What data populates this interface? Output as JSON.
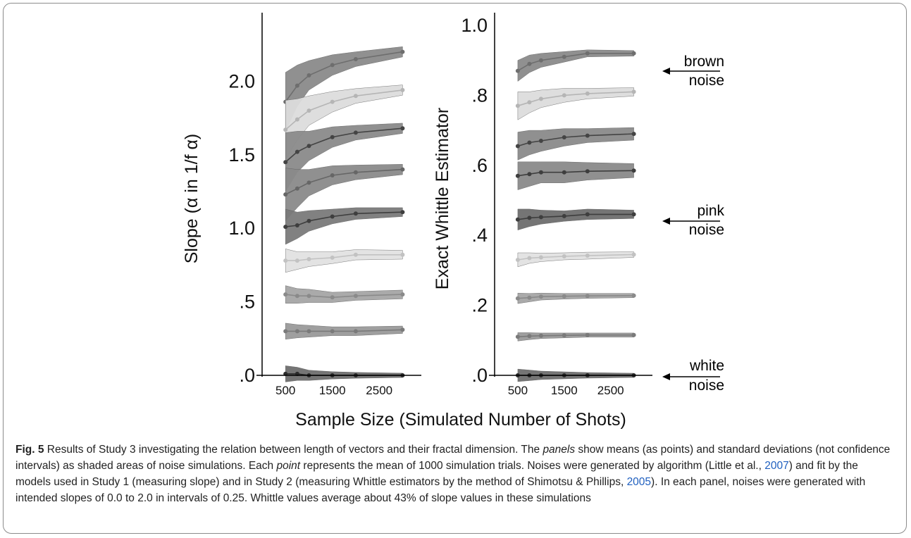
{
  "figure": {
    "xlabel": "Sample Size (Simulated Number of Shots)",
    "brown_label": [
      "brown",
      "noise"
    ],
    "pink_label": [
      "pink",
      "noise"
    ],
    "white_label": [
      "white",
      "noise"
    ]
  },
  "caption": {
    "label": "Fig. 5",
    "t1": " Results of Study 3 investigating the relation between length of vectors and their fractal dimension. The ",
    "t1_em": "panels",
    "t2": " show means (as points) and standard deviations (not confidence intervals) as shaded areas of noise simulations. Each ",
    "t2_em": "point",
    "t3": " represents the mean of 1000 simulation trials. Noises were generated by algorithm (Little et al., ",
    "ref1": "2007",
    "t4": ") and fit by the models used in Study 1 (measuring slope) and in Study 2 (measuring Whittle estimators by the method of Shimotsu & Phillips, ",
    "ref2": "2005",
    "t5": "). In each panel, noises were generated with intended slopes of 0.0 to 2.0 in intervals of 0.25. Whittle values average about 43% of slope values in these simulations"
  },
  "chart_data": [
    {
      "type": "line",
      "ylabel": "Slope (α in 1/f α)",
      "xticks": [
        "500",
        "1500",
        "2500"
      ],
      "yticks": [
        ".0",
        ".5",
        "1.0",
        "1.5",
        "2.0"
      ],
      "xlim": [
        0,
        3400
      ],
      "ylim": [
        -0.08,
        2.38
      ],
      "x": [
        500,
        750,
        1000,
        1500,
        2000,
        3000
      ],
      "series": [
        {
          "intended": 2.0,
          "color": "#8a8a8a",
          "line": "#6e6e6e",
          "means": [
            1.86,
            1.97,
            2.04,
            2.11,
            2.15,
            2.2
          ],
          "sd": [
            0.2,
            0.14,
            0.1,
            0.07,
            0.05,
            0.035
          ]
        },
        {
          "intended": 1.75,
          "color": "#dcdcdc",
          "line": "#b5b5b5",
          "means": [
            1.67,
            1.74,
            1.8,
            1.86,
            1.9,
            1.94
          ],
          "sd": [
            0.2,
            0.14,
            0.1,
            0.07,
            0.05,
            0.035
          ]
        },
        {
          "intended": 1.5,
          "color": "#8a8a8a",
          "line": "#444444",
          "means": [
            1.45,
            1.52,
            1.56,
            1.62,
            1.65,
            1.68
          ],
          "sd": [
            0.2,
            0.14,
            0.1,
            0.07,
            0.05,
            0.035
          ]
        },
        {
          "intended": 1.25,
          "color": "#8a8a8a",
          "line": "#666666",
          "means": [
            1.23,
            1.27,
            1.31,
            1.36,
            1.38,
            1.4
          ],
          "sd": [
            0.18,
            0.13,
            0.09,
            0.065,
            0.05,
            0.035
          ]
        },
        {
          "intended": 1.0,
          "color": "#7a7a7a",
          "line": "#3e3e3e",
          "means": [
            1.01,
            1.02,
            1.05,
            1.08,
            1.1,
            1.11
          ],
          "sd": [
            0.12,
            0.09,
            0.07,
            0.05,
            0.04,
            0.03
          ]
        },
        {
          "intended": 0.75,
          "color": "#e2e2e2",
          "line": "#c2c2c2",
          "means": [
            0.78,
            0.78,
            0.79,
            0.8,
            0.82,
            0.82
          ],
          "sd": [
            0.08,
            0.06,
            0.05,
            0.04,
            0.035,
            0.03
          ]
        },
        {
          "intended": 0.5,
          "color": "#a5a5a5",
          "line": "#8a8a8a",
          "means": [
            0.55,
            0.54,
            0.54,
            0.53,
            0.54,
            0.55
          ],
          "sd": [
            0.06,
            0.05,
            0.045,
            0.035,
            0.03,
            0.03
          ]
        },
        {
          "intended": 0.25,
          "color": "#9a9a9a",
          "line": "#7a7a7a",
          "means": [
            0.3,
            0.3,
            0.3,
            0.3,
            0.3,
            0.31
          ],
          "sd": [
            0.055,
            0.045,
            0.04,
            0.03,
            0.03,
            0.025
          ]
        },
        {
          "intended": 0.0,
          "color": "#6e6e6e",
          "line": "#2a2a2a",
          "means": [
            0.01,
            0.01,
            0.0,
            0.0,
            0.0,
            0.0
          ],
          "sd": [
            0.055,
            0.045,
            0.035,
            0.025,
            0.02,
            0.015
          ]
        }
      ]
    },
    {
      "type": "line",
      "ylabel": "Exact Whittle Estimator",
      "xticks": [
        "500",
        "1500",
        "2500"
      ],
      "yticks": [
        ".0",
        ".2",
        ".4",
        ".6",
        ".8",
        "1.0"
      ],
      "xlim": [
        0,
        3400
      ],
      "ylim": [
        -0.03,
        1.0
      ],
      "x": [
        500,
        750,
        1000,
        1500,
        2000,
        3000
      ],
      "series": [
        {
          "intended": 2.0,
          "color": "#8a8a8a",
          "line": "#6e6e6e",
          "means": [
            0.87,
            0.89,
            0.9,
            0.91,
            0.92,
            0.92
          ],
          "sd": [
            0.03,
            0.025,
            0.02,
            0.015,
            0.01,
            0.008
          ]
        },
        {
          "intended": 1.75,
          "color": "#dcdcdc",
          "line": "#b5b5b5",
          "means": [
            0.77,
            0.78,
            0.79,
            0.8,
            0.805,
            0.81
          ],
          "sd": [
            0.04,
            0.03,
            0.025,
            0.02,
            0.015,
            0.012
          ]
        },
        {
          "intended": 1.5,
          "color": "#8a8a8a",
          "line": "#444444",
          "means": [
            0.655,
            0.665,
            0.67,
            0.68,
            0.685,
            0.69
          ],
          "sd": [
            0.04,
            0.035,
            0.03,
            0.025,
            0.02,
            0.018
          ]
        },
        {
          "intended": 1.25,
          "color": "#8a8a8a",
          "line": "#3e3e3e",
          "means": [
            0.57,
            0.575,
            0.58,
            0.58,
            0.583,
            0.585
          ],
          "sd": [
            0.04,
            0.035,
            0.03,
            0.03,
            0.025,
            0.02
          ]
        },
        {
          "intended": 1.0,
          "color": "#6e6e6e",
          "line": "#3e3e3e",
          "means": [
            0.445,
            0.45,
            0.452,
            0.455,
            0.46,
            0.46
          ],
          "sd": [
            0.03,
            0.025,
            0.02,
            0.015,
            0.015,
            0.012
          ]
        },
        {
          "intended": 0.75,
          "color": "#e2e2e2",
          "line": "#c2c2c2",
          "means": [
            0.33,
            0.335,
            0.337,
            0.34,
            0.342,
            0.345
          ],
          "sd": [
            0.02,
            0.015,
            0.012,
            0.01,
            0.01,
            0.008
          ]
        },
        {
          "intended": 0.5,
          "color": "#a5a5a5",
          "line": "#8a8a8a",
          "means": [
            0.22,
            0.222,
            0.225,
            0.226,
            0.227,
            0.228
          ],
          "sd": [
            0.015,
            0.012,
            0.01,
            0.008,
            0.007,
            0.006
          ]
        },
        {
          "intended": 0.25,
          "color": "#9a9a9a",
          "line": "#7a7a7a",
          "means": [
            0.11,
            0.112,
            0.113,
            0.114,
            0.115,
            0.115
          ],
          "sd": [
            0.012,
            0.01,
            0.008,
            0.007,
            0.006,
            0.006
          ]
        },
        {
          "intended": 0.0,
          "color": "#6e6e6e",
          "line": "#2a2a2a",
          "means": [
            0.0,
            0.0,
            0.0,
            0.0,
            0.0,
            0.0
          ],
          "sd": [
            0.018,
            0.015,
            0.012,
            0.01,
            0.008,
            0.006
          ]
        }
      ]
    }
  ]
}
